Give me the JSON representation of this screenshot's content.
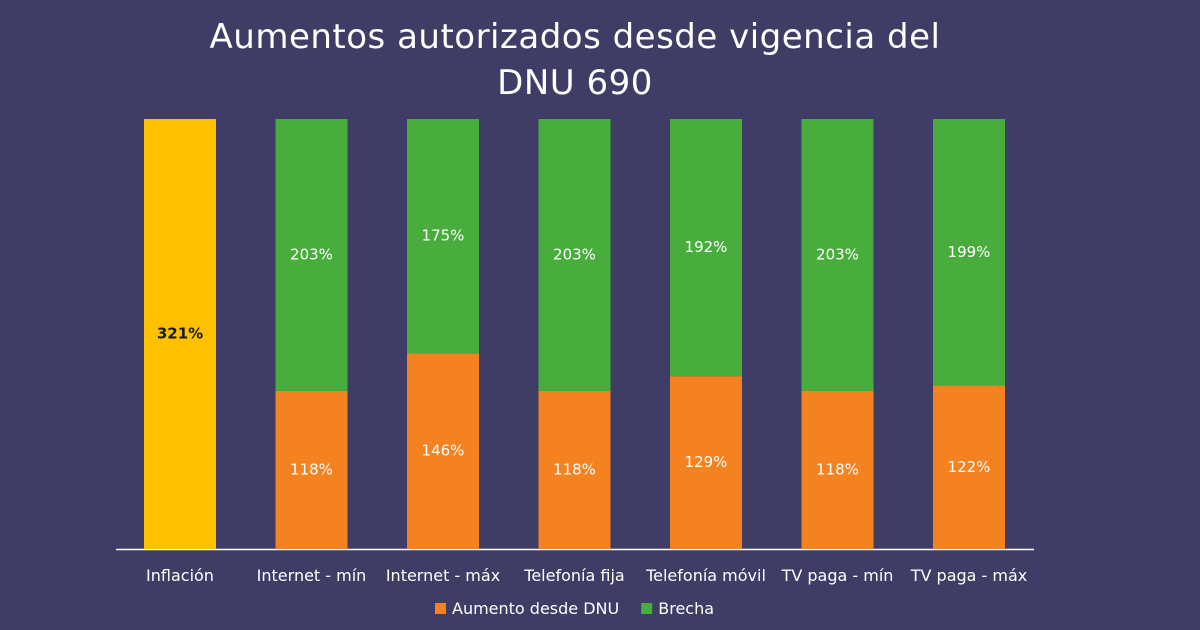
{
  "chart_data": {
    "type": "bar",
    "stacked": true,
    "title_lines": [
      "Aumentos autorizados desde vigencia del",
      "DNU 690"
    ],
    "categories": [
      "Inflación",
      "Internet - mín",
      "Internet - máx",
      "Telefonía fija",
      "Telefonía móvil",
      "TV paga - mín",
      "TV paga - máx"
    ],
    "single_bar": {
      "category": "Inflación",
      "value": 321,
      "label": "321%",
      "color": "#ffc000"
    },
    "series": [
      {
        "name": "Aumento desde DNU",
        "color": "#f58220",
        "values": [
          null,
          118,
          146,
          118,
          129,
          118,
          122
        ],
        "labels": [
          "",
          "118%",
          "146%",
          "118%",
          "129%",
          "118%",
          "122%"
        ]
      },
      {
        "name": "Brecha",
        "color": "#49ad3d",
        "values": [
          null,
          203,
          175,
          203,
          192,
          203,
          199
        ],
        "labels": [
          "",
          "203%",
          "175%",
          "203%",
          "192%",
          "203%",
          "199%"
        ]
      }
    ],
    "ylim": [
      0,
      321
    ],
    "grid": false,
    "legend_position": "bottom"
  }
}
